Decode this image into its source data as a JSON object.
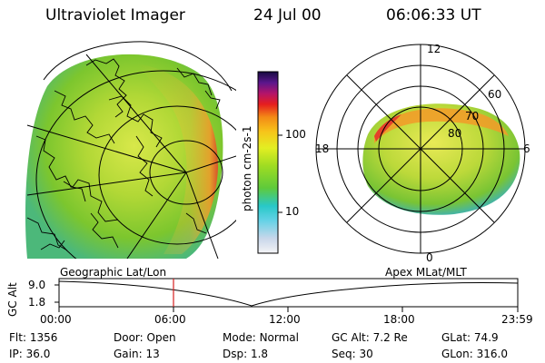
{
  "header": {
    "title": "Ultraviolet Imager",
    "date": "24 Jul 00",
    "time": "06:06:33 UT"
  },
  "colorbar": {
    "unit_label": "photon cm-2s-1",
    "ticks": [
      "100",
      "10"
    ]
  },
  "polar_plot": {
    "mlt_labels": [
      "12",
      "18",
      "6",
      "0"
    ],
    "lat_labels": [
      "60",
      "70",
      "80"
    ]
  },
  "orbit": {
    "left_label": "Geographic Lat/Lon",
    "right_label": "Apex MLat/MLT",
    "axis_title": "GC Alt",
    "y_ticks": [
      "9.0",
      "1.8"
    ],
    "x_ticks": [
      "00:00",
      "06:00",
      "12:00",
      "18:00",
      "23:59"
    ],
    "marker_color": "#d42020"
  },
  "footer": {
    "row1": [
      {
        "label": "Flt:",
        "value": "1356"
      },
      {
        "label": "Door:",
        "value": "Open"
      },
      {
        "label": "Mode:",
        "value": "Normal"
      },
      {
        "label": "GC Alt:",
        "value": "7.2 Re"
      },
      {
        "label": "GLat:",
        "value": "74.9"
      }
    ],
    "row2": [
      {
        "label": "IP:",
        "value": "36.0"
      },
      {
        "label": "Gain:",
        "value": "13"
      },
      {
        "label": "Dsp:",
        "value": "1.8"
      },
      {
        "label": "Seq:",
        "value": "30"
      },
      {
        "label": "GLon:",
        "value": "316.0"
      }
    ]
  }
}
